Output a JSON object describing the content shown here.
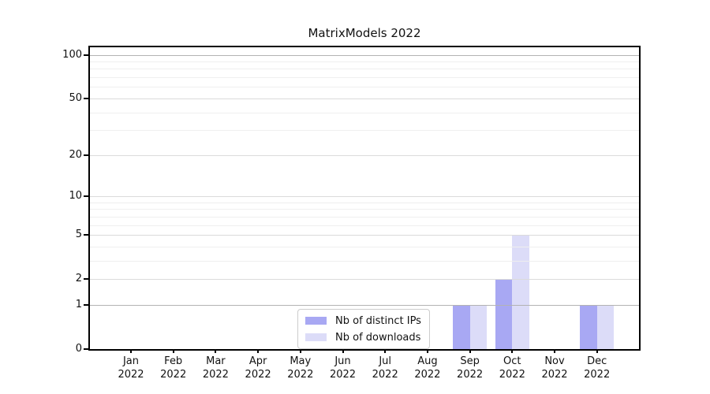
{
  "title": "MatrixModels 2022",
  "legend": {
    "items": [
      {
        "label": "Nb of distinct IPs",
        "color": "#a8a8f3"
      },
      {
        "label": "Nb of downloads",
        "color": "#dcdcf8"
      }
    ]
  },
  "axes": {
    "y_major_tick_labels": [
      "0",
      "1",
      "2",
      "5",
      "10",
      "20",
      "50",
      "100"
    ],
    "x_tick_months": [
      "Jan",
      "Feb",
      "Mar",
      "Apr",
      "May",
      "Jun",
      "Jul",
      "Aug",
      "Sep",
      "Oct",
      "Nov",
      "Dec"
    ],
    "x_tick_year": "2022"
  },
  "colors": {
    "grid_major": "#dbdbdb",
    "grid_minor": "#efefef",
    "grid_emphasized": "#b3b3b3",
    "axis": "#000000",
    "background": "#ffffff"
  },
  "chart_data": {
    "type": "bar",
    "title": "MatrixModels 2022",
    "categories": [
      "Jan 2022",
      "Feb 2022",
      "Mar 2022",
      "Apr 2022",
      "May 2022",
      "Jun 2022",
      "Jul 2022",
      "Aug 2022",
      "Sep 2022",
      "Oct 2022",
      "Nov 2022",
      "Dec 2022"
    ],
    "series": [
      {
        "name": "Nb of distinct IPs",
        "color": "#a8a8f3",
        "values": [
          0,
          0,
          0,
          0,
          0,
          0,
          0,
          0,
          1,
          2,
          0,
          1
        ]
      },
      {
        "name": "Nb of downloads",
        "color": "#dcdcf8",
        "values": [
          0,
          0,
          0,
          0,
          0,
          0,
          0,
          0,
          1,
          5,
          0,
          1
        ]
      }
    ],
    "xlabel": "",
    "ylabel": "",
    "yscale": "log1p",
    "y_major_ticks": [
      0,
      1,
      2,
      5,
      10,
      20,
      50,
      100
    ],
    "y_minor_ticks": [
      3,
      4,
      6,
      7,
      8,
      9,
      30,
      40,
      60,
      70,
      80,
      90
    ],
    "emphasized_gridlines": [
      1,
      100
    ],
    "ylim": [
      0,
      112
    ],
    "grid": "horizontal major+minor, drawn above bars",
    "legend_position": "lower center"
  }
}
